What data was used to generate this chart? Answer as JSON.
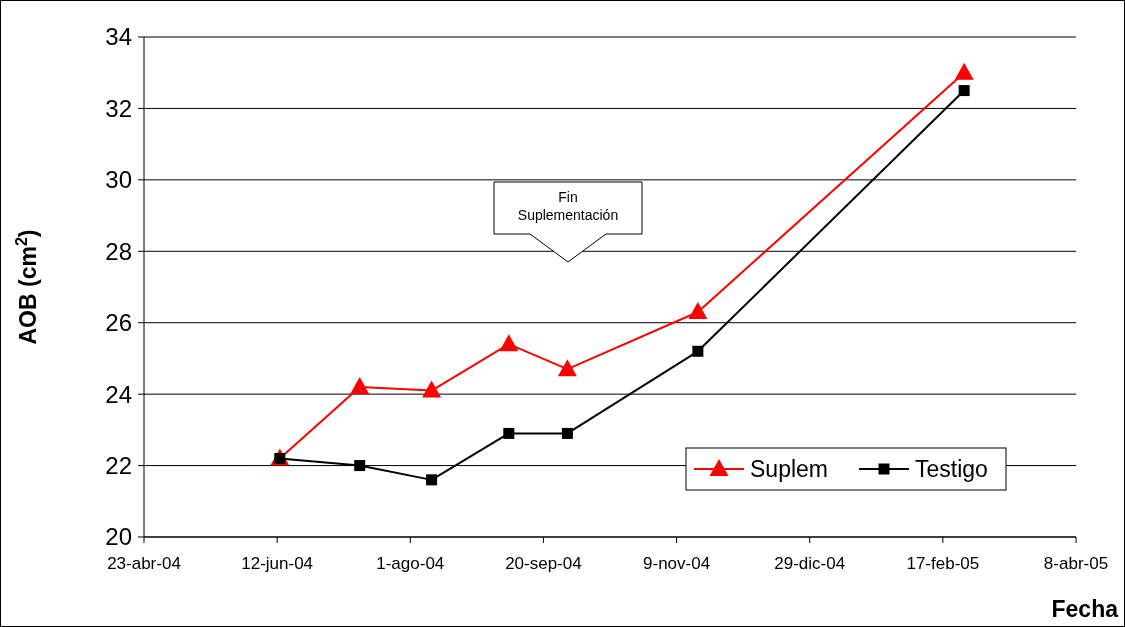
{
  "chart_data": {
    "type": "line",
    "xlabel": "Fecha",
    "ylabel": "AOB (cm$^{2}$)",
    "x": [
      "2004-06-13",
      "2004-07-13",
      "2004-08-09",
      "2004-09-07",
      "2004-09-29",
      "2004-11-17",
      "2005-02-25"
    ],
    "series": [
      {
        "name": "Suplem",
        "color": "#ff0000",
        "marker": "triangle",
        "values": [
          22.2,
          24.2,
          24.1,
          25.4,
          24.7,
          26.3,
          33.0
        ]
      },
      {
        "name": "Testigo",
        "color": "#000000",
        "marker": "square",
        "values": [
          22.2,
          22.0,
          21.6,
          22.9,
          22.9,
          25.2,
          32.5
        ]
      }
    ],
    "xlim": [
      "2004-04-23",
      "2005-04-08"
    ],
    "xticks": [
      {
        "value": "2004-04-23",
        "label": "23-abr-04"
      },
      {
        "value": "2004-06-12",
        "label": "12-jun-04"
      },
      {
        "value": "2004-08-01",
        "label": "1-ago-04"
      },
      {
        "value": "2004-09-20",
        "label": "20-sep-04"
      },
      {
        "value": "2004-11-09",
        "label": "9-nov-04"
      },
      {
        "value": "2004-12-29",
        "label": "29-dic-04"
      },
      {
        "value": "2005-02-17",
        "label": "17-feb-05"
      },
      {
        "value": "2005-04-08",
        "label": "8-abr-05"
      }
    ],
    "ylim": [
      20,
      34
    ],
    "yticks": [
      20,
      22,
      24,
      26,
      28,
      30,
      32,
      34
    ],
    "grid": "y",
    "legend": "bottom right",
    "line_style": "solid",
    "annotations": [
      "Fin Suplementación"
    ]
  }
}
